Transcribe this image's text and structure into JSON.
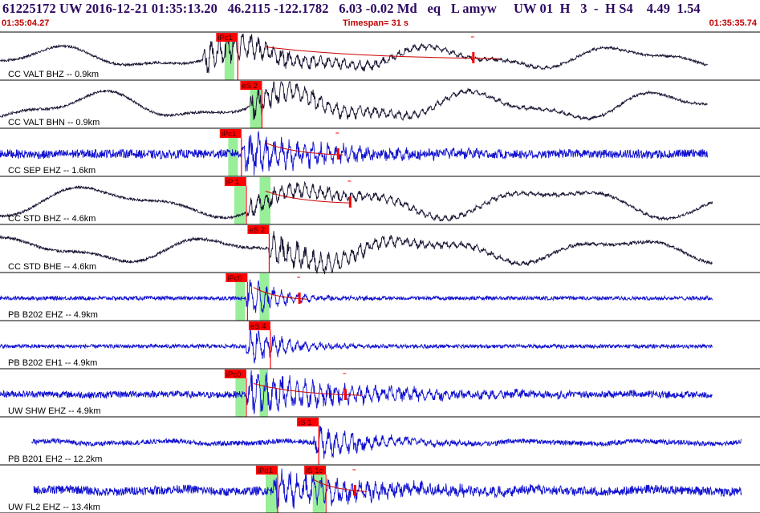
{
  "header": {
    "title": "61225172 UW 2016-12-21 01:35:13.20   46.2115 -122.1782   6.03 -0.02 Md   eq   L amyw     UW 01  H   3  -  H S4    4.49  1.54",
    "start_time": "01:35:04.27",
    "timespan": "Timespan=  31 s",
    "end_time": "01:35:35.74"
  },
  "colors": {
    "background": "#ffffff",
    "title": "#2e0a62",
    "time_text": "#c00000",
    "trace_black": "#1a1433",
    "trace_blue": "#1010d0",
    "pick": "#ff0000",
    "window": "#99ee99",
    "coda": "#cc0000",
    "separator": "#000000"
  },
  "chart_data": {
    "type": "line",
    "title": "",
    "x_unit": "s",
    "xlim": [
      0,
      31.47
    ],
    "traces": [
      {
        "label": "CC VALT BHZ -- 0.9km",
        "color": "black",
        "waveform": {
          "start": 0.0,
          "end": 29.3,
          "amplitude": 0.28,
          "noise": 0.05,
          "lowfreq": 0.35,
          "period": 7.8,
          "signal_start": 8.4,
          "signal_amp": 0.55,
          "signal_decay": 5.0
        },
        "picks": [
          {
            "label": "iPc1",
            "time": 8.95
          }
        ],
        "windows": [
          {
            "start": 9.3,
            "end": 9.7
          }
        ],
        "coda": {
          "start": 11.0,
          "end": 20.7,
          "mark": 19.6
        }
      },
      {
        "label": "CC VALT BHN -- 0.9km",
        "color": "black",
        "waveform": {
          "start": 0.0,
          "end": 29.3,
          "amplitude": 0.25,
          "noise": 0.05,
          "lowfreq": 0.45,
          "period": 7.8,
          "signal_start": 10.3,
          "signal_amp": 0.45,
          "signal_decay": 5.0
        },
        "picks": [
          {
            "label": "eS 2",
            "time": 9.95
          }
        ],
        "windows": [
          {
            "start": 10.35,
            "end": 10.85
          }
        ]
      },
      {
        "label": "CC SEP EHZ -- 1.6km",
        "color": "blue",
        "waveform": {
          "start": 0.0,
          "end": 29.3,
          "amplitude": 0.2,
          "noise": 0.18,
          "lowfreq": 0.02,
          "period": 5.0,
          "signal_start": 10.0,
          "signal_amp": 0.7,
          "signal_decay": 3.5
        },
        "picks": [
          {
            "label": "iPc1",
            "time": 9.1
          }
        ],
        "windows": [
          {
            "start": 9.45,
            "end": 9.85
          }
        ],
        "coda": {
          "start": 11.0,
          "end": 14.2,
          "mark": 14.0
        }
      },
      {
        "label": "CC STD BHZ -- 4.6km",
        "color": "black",
        "waveform": {
          "start": 0.0,
          "end": 29.5,
          "amplitude": 0.28,
          "noise": 0.05,
          "lowfreq": 0.5,
          "period": 9.5,
          "signal_start": 10.2,
          "signal_amp": 0.35,
          "signal_decay": 6.0
        },
        "picks": [
          {
            "label": "iP 1",
            "time": 9.3
          }
        ],
        "windows": [
          {
            "start": 9.7,
            "end": 10.15
          },
          {
            "start": 10.75,
            "end": 11.2
          }
        ],
        "coda": {
          "start": 11.0,
          "end": 14.5,
          "mark": 14.5
        }
      },
      {
        "label": "CC STD BHE -- 4.6km",
        "color": "black",
        "waveform": {
          "start": 0.0,
          "end": 29.5,
          "amplitude": 0.25,
          "noise": 0.06,
          "lowfreq": 0.4,
          "period": 8.4,
          "signal_start": 11.1,
          "signal_amp": 0.55,
          "signal_decay": 4.5
        },
        "picks": [
          {
            "label": "eS 2",
            "time": 10.25
          }
        ],
        "windows": []
      },
      {
        "label": "PB B202 EHZ -- 4.9km",
        "color": "blue",
        "waveform": {
          "start": 0.0,
          "end": 29.5,
          "amplitude": 0.08,
          "noise": 0.08,
          "lowfreq": 0.0,
          "period": 5.0,
          "signal_start": 10.2,
          "signal_amp": 0.75,
          "signal_decay": 1.3
        },
        "picks": [
          {
            "label": "iPc0",
            "time": 9.35
          }
        ],
        "windows": [
          {
            "start": 9.75,
            "end": 10.15
          },
          {
            "start": 10.75,
            "end": 11.15
          }
        ],
        "coda": {
          "start": 10.5,
          "end": 12.7,
          "mark": 12.4
        }
      },
      {
        "label": "PB B202 EH1 -- 4.9km",
        "color": "blue",
        "waveform": {
          "start": 0.0,
          "end": 29.5,
          "amplitude": 0.08,
          "noise": 0.08,
          "lowfreq": 0.0,
          "period": 5.0,
          "signal_start": 10.2,
          "signal_amp": 0.75,
          "signal_decay": 1.4
        },
        "picks": [
          {
            "label": "eS 4",
            "time": 10.3
          }
        ],
        "windows": []
      },
      {
        "label": "UW SHW EHZ -- 4.9km",
        "color": "blue",
        "waveform": {
          "start": 0.0,
          "end": 29.5,
          "amplitude": 0.12,
          "noise": 0.14,
          "lowfreq": 0.02,
          "period": 5.0,
          "signal_start": 10.2,
          "signal_amp": 0.7,
          "signal_decay": 4.5
        },
        "picks": [
          {
            "label": "iPc0",
            "time": 9.3
          }
        ],
        "windows": [
          {
            "start": 9.75,
            "end": 10.15
          },
          {
            "start": 10.75,
            "end": 11.1
          }
        ],
        "coda": {
          "start": 10.5,
          "end": 15.0,
          "mark": 14.3
        }
      },
      {
        "label": "PB B201 EH2 -- 12.2km",
        "color": "blue",
        "waveform": {
          "start": 1.3,
          "end": 30.7,
          "amplitude": 0.1,
          "noise": 0.1,
          "lowfreq": 0.05,
          "period": 5.0,
          "signal_start": 13.0,
          "signal_amp": 0.6,
          "signal_decay": 2.2
        },
        "picks": [
          {
            "label": "iS 1",
            "time": 12.3
          }
        ],
        "windows": []
      },
      {
        "label": "UW FL2 EHZ -- 13.4km",
        "color": "blue",
        "waveform": {
          "start": 1.4,
          "end": 30.7,
          "amplitude": 0.15,
          "noise": 0.18,
          "lowfreq": 0.05,
          "period": 5.0,
          "signal_start": 11.3,
          "signal_amp": 0.6,
          "signal_decay": 4.5
        },
        "picks": [
          {
            "label": "iPd1",
            "time": 10.6
          },
          {
            "label": "iS 1c",
            "time": 12.6
          }
        ],
        "windows": [
          {
            "start": 11.0,
            "end": 11.5
          },
          {
            "start": 12.95,
            "end": 13.45
          }
        ],
        "coda": {
          "start": 13.0,
          "end": 15.2,
          "mark": 14.7
        }
      }
    ]
  }
}
